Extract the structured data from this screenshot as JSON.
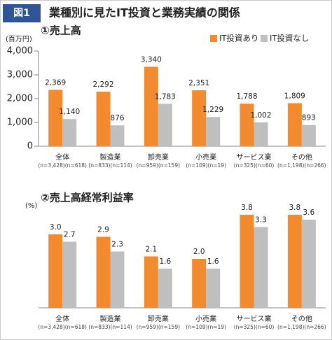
{
  "header": {
    "badge": "図1",
    "title": "業種別に見たIT投資と業務実績の関係"
  },
  "chart_data": [
    {
      "type": "bar",
      "title": "①売上高",
      "y_label": "(百万円)",
      "categories": [
        "全体",
        "製造業",
        "卸売業",
        "小売業",
        "サービス業",
        "その他"
      ],
      "category_notes": [
        "(n=3,428)(n=618)",
        "(n=833)(n=114)",
        "(n=959)(n=159)",
        "(n=109)(n=19)",
        "(n=325)(n=60)",
        "(n=1,198)(n=266)"
      ],
      "series": [
        {
          "name": "IT投資あり",
          "color": "#f28a30",
          "values": [
            2369,
            2292,
            3340,
            2351,
            1788,
            1809
          ],
          "value_labels": [
            "2,369",
            "2,292",
            "3,340",
            "2,351",
            "1,788",
            "1,809"
          ]
        },
        {
          "name": "IT投資なし",
          "color": "#bfbfbf",
          "values": [
            1140,
            876,
            1783,
            1229,
            1002,
            893
          ],
          "value_labels": [
            "1,140",
            "876",
            "1,783",
            "1,229",
            "1,002",
            "893"
          ]
        }
      ],
      "ylim": [
        0,
        4000
      ],
      "yticks": [
        0,
        {
          "value": 1000,
          "label": "1,000"
        },
        {
          "value": 2000,
          "label": "2,000"
        },
        {
          "value": 3000,
          "label": "3,000"
        },
        {
          "value": 4000,
          "label": "4,000"
        }
      ],
      "legend": "top-right"
    },
    {
      "type": "bar",
      "title": "②売上高経常利益率",
      "y_label": "(%)",
      "categories": [
        "全体",
        "製造業",
        "卸売業",
        "小売業",
        "サービス業",
        "その他"
      ],
      "category_notes": [
        "(n=3,428)(n=618)",
        "(n=833)(n=114)",
        "(n=959)(n=159)",
        "(n=109)(n=19)",
        "(n=325)(n=60)",
        "(n=1,198)(n=266)"
      ],
      "series": [
        {
          "name": "IT投資あり",
          "color": "#f28a30",
          "values": [
            3.0,
            2.9,
            2.1,
            2.0,
            3.8,
            3.8
          ],
          "value_labels": [
            "3.0",
            "2.9",
            "2.1",
            "2.0",
            "3.8",
            "3.8"
          ]
        },
        {
          "name": "IT投資なし",
          "color": "#bfbfbf",
          "values": [
            2.7,
            2.3,
            1.6,
            1.6,
            3.3,
            3.6
          ],
          "value_labels": [
            "2.7",
            "2.3",
            "1.6",
            "1.6",
            "3.3",
            "3.6"
          ]
        }
      ],
      "ylim": [
        0,
        4
      ]
    }
  ]
}
